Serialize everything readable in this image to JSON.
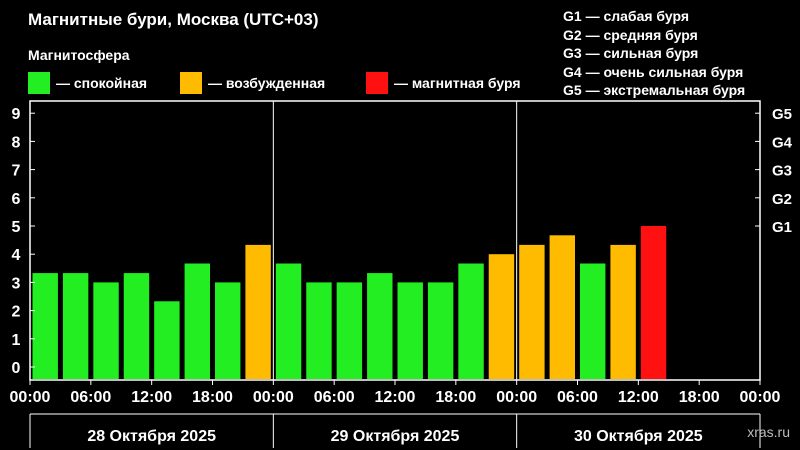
{
  "title": "Магнитные бури, Москва (UTC+03)",
  "subtitle": "Магнитосфера",
  "legend": [
    {
      "label": "— спокойная",
      "color": "#22ee22"
    },
    {
      "label": "— возбужденная",
      "color": "#ffbb00"
    },
    {
      "label": "— магнитная буря",
      "color": "#ff1111"
    }
  ],
  "scale": [
    "G1 — слабая буря",
    "G2 — средняя буря",
    "G3 — сильная буря",
    "G4 — очень сильная буря",
    "G5 — экстремальная буря"
  ],
  "watermark": "xras.ru",
  "chart_data": {
    "type": "bar",
    "y_ticks": [
      0,
      1,
      2,
      3,
      4,
      5,
      6,
      7,
      8,
      9
    ],
    "right_ticks": [
      {
        "label": "G1",
        "value": 5
      },
      {
        "label": "G2",
        "value": 6
      },
      {
        "label": "G3",
        "value": 7
      },
      {
        "label": "G4",
        "value": 8
      },
      {
        "label": "G5",
        "value": 9
      }
    ],
    "ylim": [
      0,
      9.5
    ],
    "x_tick_labels": [
      "00:00",
      "06:00",
      "12:00",
      "18:00",
      "00:00",
      "06:00",
      "12:00",
      "18:00",
      "00:00",
      "06:00",
      "12:00",
      "18:00",
      "00:00"
    ],
    "days": [
      "28 Октября 2025",
      "29 Октября 2025",
      "30 Октября 2025"
    ],
    "slots": 24,
    "values": [
      3.33,
      3.33,
      3.0,
      3.33,
      2.33,
      3.67,
      3.0,
      4.33,
      3.67,
      3.0,
      3.0,
      3.33,
      3.0,
      3.0,
      3.67,
      4.0,
      4.33,
      4.67,
      3.67,
      4.33,
      5.0
    ],
    "status": [
      "quiet",
      "quiet",
      "quiet",
      "quiet",
      "quiet",
      "quiet",
      "quiet",
      "active",
      "quiet",
      "quiet",
      "quiet",
      "quiet",
      "quiet",
      "quiet",
      "quiet",
      "active",
      "active",
      "active",
      "quiet",
      "active",
      "storm"
    ],
    "colors": {
      "quiet": "#22ee22",
      "active": "#ffbb00",
      "storm": "#ff1111"
    },
    "grid": false
  }
}
